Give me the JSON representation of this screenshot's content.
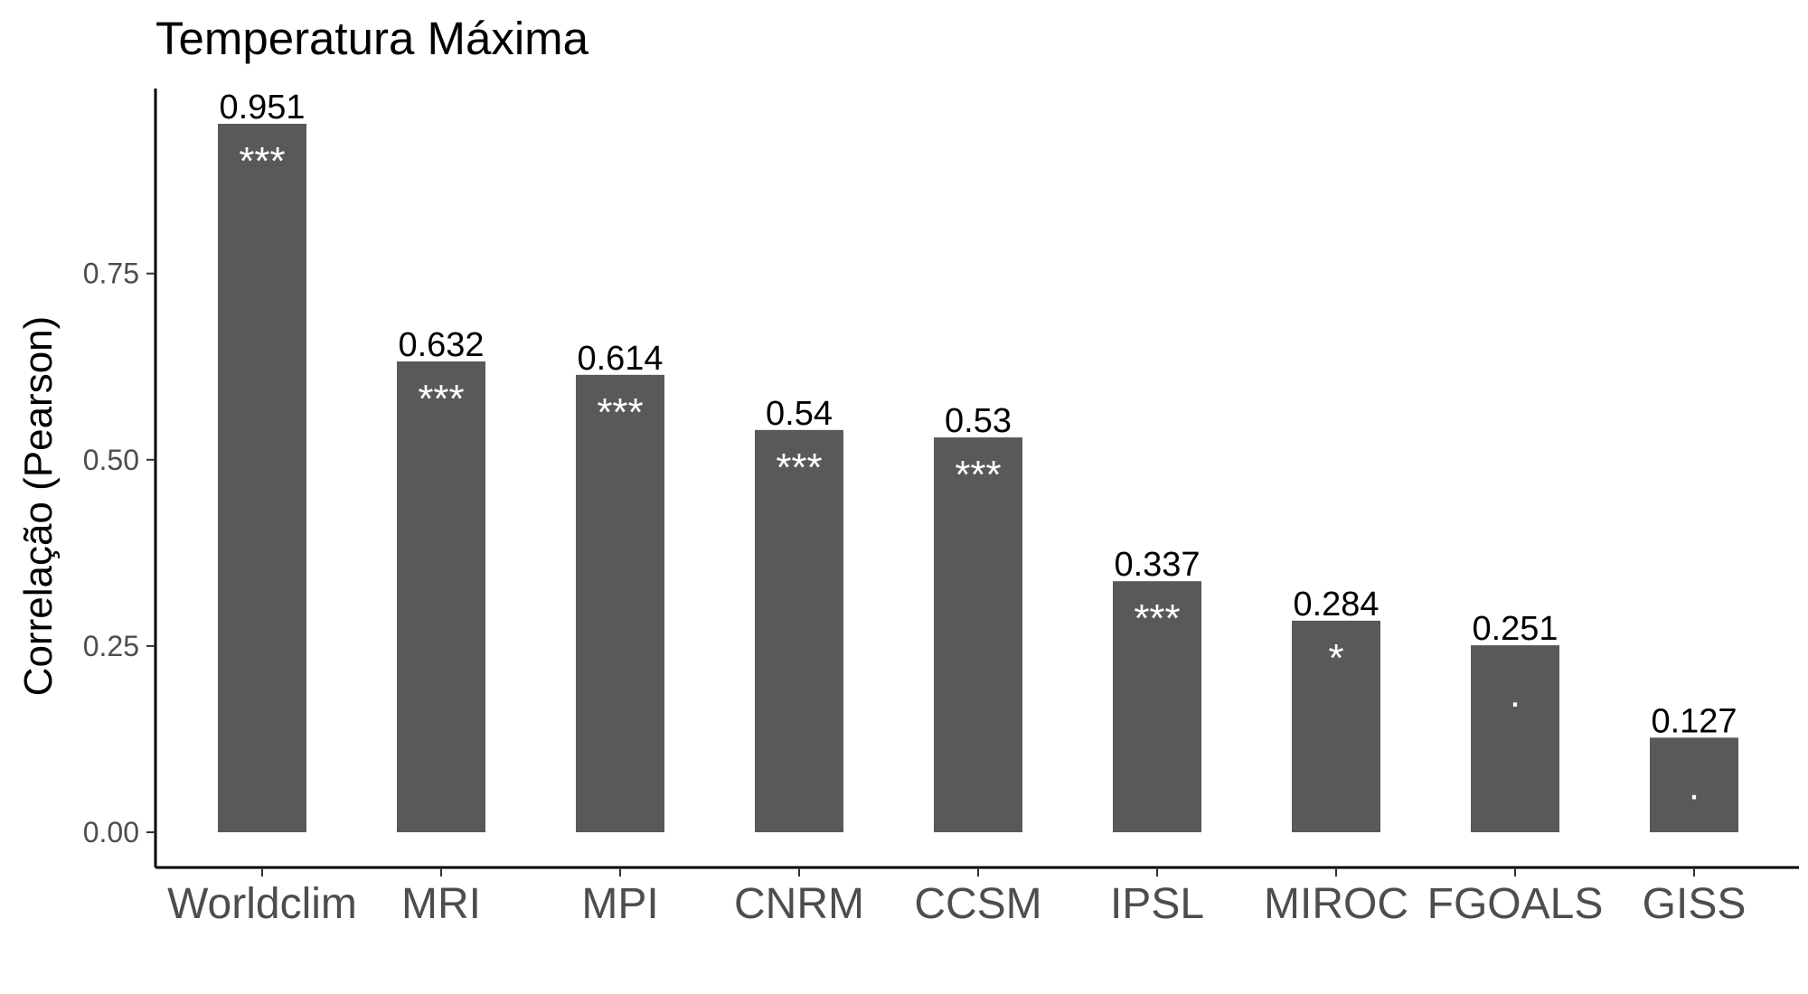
{
  "chart_data": {
    "type": "bar",
    "title": "Temperatura Máxima",
    "xlabel": "",
    "ylabel": "Correlação (Pearson)",
    "ylim": [
      0,
      0.951
    ],
    "yticks": [
      "0.00",
      "0.25",
      "0.50",
      "0.75"
    ],
    "ytick_values": [
      0,
      0.25,
      0.5,
      0.75
    ],
    "categories": [
      "Worldclim",
      "MRI",
      "MPI",
      "CNRM",
      "CCSM",
      "IPSL",
      "MIROC",
      "FGOALS",
      "GISS"
    ],
    "values": [
      0.951,
      0.632,
      0.614,
      0.54,
      0.53,
      0.337,
      0.284,
      0.251,
      0.127
    ],
    "value_labels": [
      "0.951",
      "0.632",
      "0.614",
      "0.54",
      "0.53",
      "0.337",
      "0.284",
      "0.251",
      "0.127"
    ],
    "significance": [
      "***",
      "***",
      "***",
      "***",
      "***",
      "***",
      "*",
      ".",
      "."
    ],
    "bar_color": "#595959",
    "grid": false,
    "legend": "none"
  }
}
